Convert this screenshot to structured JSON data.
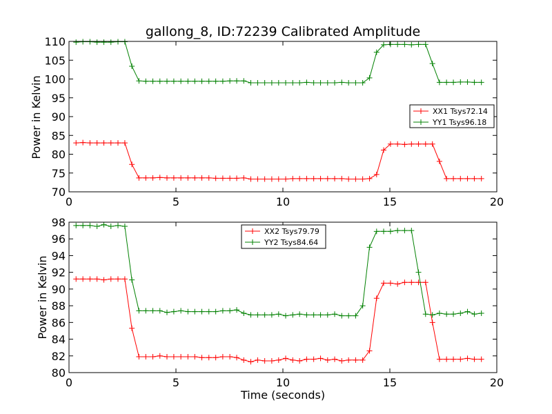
{
  "chart_data": [
    {
      "type": "line",
      "title": "gallong_8, ID:72239 Calibrated Amplitude",
      "xlabel": "",
      "ylabel": "Power in Kelvin",
      "xlim": [
        0,
        20
      ],
      "ylim": [
        70,
        110
      ],
      "xticks": [
        "0",
        "5",
        "10",
        "15",
        "20"
      ],
      "yticks": [
        "70",
        "75",
        "80",
        "85",
        "90",
        "95",
        "100",
        "105",
        "110"
      ],
      "legend_position": "center-right",
      "x": [
        0.33,
        0.65,
        0.98,
        1.31,
        1.63,
        1.96,
        2.29,
        2.61,
        2.94,
        3.27,
        3.59,
        3.92,
        4.25,
        4.58,
        4.9,
        5.23,
        5.56,
        5.88,
        6.21,
        6.54,
        6.86,
        7.19,
        7.52,
        7.84,
        8.17,
        8.5,
        8.82,
        9.15,
        9.48,
        9.8,
        10.13,
        10.46,
        10.78,
        11.11,
        11.44,
        11.76,
        12.09,
        12.42,
        12.75,
        13.07,
        13.4,
        13.73,
        14.05,
        14.38,
        14.71,
        15.03,
        15.36,
        15.69,
        16.01,
        16.34,
        16.67,
        16.99,
        17.32,
        17.65,
        17.97,
        18.3,
        18.63,
        18.95,
        19.28
      ],
      "series": [
        {
          "name": "XX1 Tsys72.14",
          "color": "#ff0000",
          "values": [
            83.0,
            83.1,
            83.0,
            83.0,
            83.0,
            83.0,
            83.0,
            83.0,
            77.3,
            73.7,
            73.7,
            73.7,
            73.8,
            73.7,
            73.7,
            73.7,
            73.7,
            73.7,
            73.7,
            73.7,
            73.6,
            73.6,
            73.6,
            73.6,
            73.7,
            73.4,
            73.4,
            73.4,
            73.4,
            73.4,
            73.4,
            73.5,
            73.5,
            73.5,
            73.5,
            73.5,
            73.5,
            73.5,
            73.5,
            73.4,
            73.4,
            73.4,
            73.5,
            74.6,
            81.1,
            82.7,
            82.7,
            82.6,
            82.7,
            82.7,
            82.7,
            82.7,
            78.1,
            73.5,
            73.5,
            73.5,
            73.5,
            73.5,
            73.5
          ]
        },
        {
          "name": "YY1 Tsys96.18",
          "color": "#008000",
          "values": [
            109.8,
            109.9,
            109.9,
            109.8,
            109.8,
            109.8,
            109.9,
            109.9,
            103.4,
            99.5,
            99.4,
            99.4,
            99.4,
            99.4,
            99.4,
            99.4,
            99.4,
            99.4,
            99.4,
            99.4,
            99.4,
            99.4,
            99.5,
            99.5,
            99.5,
            99.0,
            99.0,
            99.0,
            99.0,
            99.0,
            99.0,
            99.0,
            99.0,
            99.1,
            99.0,
            99.0,
            99.0,
            99.0,
            99.1,
            99.0,
            99.0,
            99.0,
            100.3,
            107.1,
            109.1,
            109.2,
            109.2,
            109.2,
            109.1,
            109.2,
            109.2,
            104.1,
            99.1,
            99.1,
            99.1,
            99.2,
            99.2,
            99.1,
            99.1
          ]
        }
      ]
    },
    {
      "type": "line",
      "title": "",
      "xlabel": "Time (seconds)",
      "ylabel": "Power in Kelvin",
      "xlim": [
        0,
        20
      ],
      "ylim": [
        80,
        98
      ],
      "xticks": [
        "0",
        "5",
        "10",
        "15",
        "20"
      ],
      "yticks": [
        "80",
        "82",
        "84",
        "86",
        "88",
        "90",
        "92",
        "94",
        "96",
        "98"
      ],
      "legend_position": "top-center",
      "x": [
        0.33,
        0.65,
        0.98,
        1.31,
        1.63,
        1.96,
        2.29,
        2.61,
        2.94,
        3.27,
        3.59,
        3.92,
        4.25,
        4.58,
        4.9,
        5.23,
        5.56,
        5.88,
        6.21,
        6.54,
        6.86,
        7.19,
        7.52,
        7.84,
        8.17,
        8.5,
        8.82,
        9.15,
        9.48,
        9.8,
        10.13,
        10.46,
        10.78,
        11.11,
        11.44,
        11.76,
        12.09,
        12.42,
        12.75,
        13.07,
        13.4,
        13.73,
        14.05,
        14.38,
        14.71,
        15.03,
        15.36,
        15.69,
        16.01,
        16.34,
        16.67,
        16.99,
        17.32,
        17.65,
        17.97,
        18.3,
        18.63,
        18.95,
        19.28
      ],
      "series": [
        {
          "name": "XX2 Tsys79.79",
          "color": "#ff0000",
          "values": [
            91.2,
            91.2,
            91.2,
            91.2,
            91.1,
            91.2,
            91.2,
            91.2,
            85.3,
            81.9,
            81.9,
            81.9,
            82.0,
            81.9,
            81.9,
            81.9,
            81.9,
            81.9,
            81.8,
            81.8,
            81.8,
            81.9,
            81.9,
            81.8,
            81.5,
            81.3,
            81.5,
            81.4,
            81.4,
            81.5,
            81.7,
            81.5,
            81.4,
            81.6,
            81.6,
            81.7,
            81.5,
            81.6,
            81.4,
            81.5,
            81.5,
            81.5,
            82.6,
            88.9,
            90.7,
            90.7,
            90.6,
            90.8,
            90.8,
            90.8,
            90.8,
            86.0,
            81.6,
            81.6,
            81.6,
            81.6,
            81.7,
            81.6,
            81.6
          ]
        },
        {
          "name": "YY2 Tsys84.64",
          "color": "#008000",
          "values": [
            97.6,
            97.6,
            97.6,
            97.5,
            97.7,
            97.5,
            97.6,
            97.5,
            91.1,
            87.4,
            87.4,
            87.4,
            87.4,
            87.2,
            87.3,
            87.4,
            87.3,
            87.3,
            87.3,
            87.3,
            87.3,
            87.4,
            87.4,
            87.5,
            87.1,
            86.9,
            86.9,
            86.9,
            86.9,
            87.0,
            86.8,
            86.9,
            87.0,
            86.9,
            86.9,
            86.9,
            86.9,
            87.0,
            86.8,
            86.8,
            86.8,
            88.0,
            95.0,
            96.9,
            96.9,
            96.9,
            97.0,
            97.0,
            97.0,
            92.0,
            87.0,
            86.9,
            87.1,
            87.0,
            87.0,
            87.1,
            87.3,
            87.0,
            87.1
          ]
        }
      ]
    }
  ]
}
